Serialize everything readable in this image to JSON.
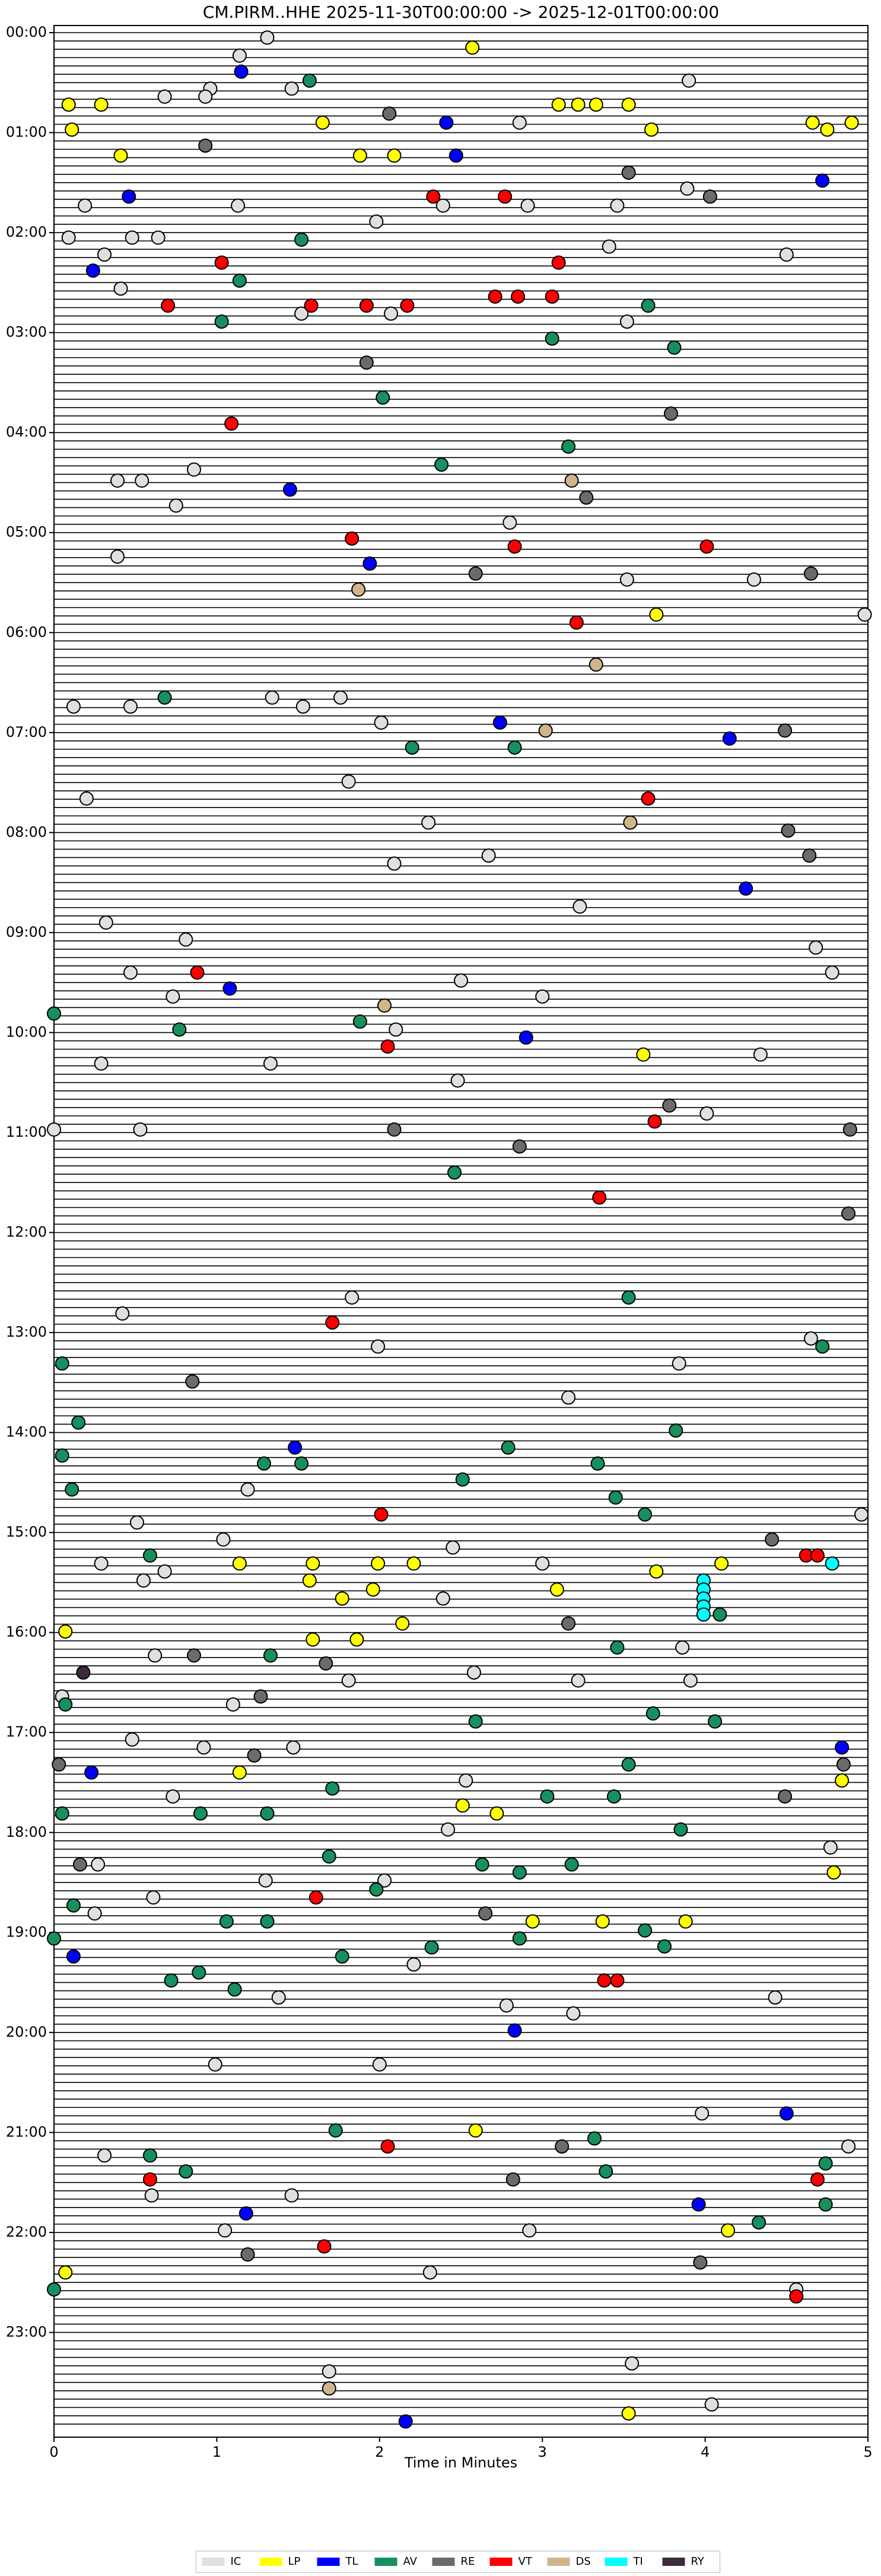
{
  "chart_data": {
    "type": "scatter",
    "title": "CM.PIRM..HHE  2025-11-30T00:00:00 -> 2025-12-01T00:00:00",
    "x_label": "Time in Minutes",
    "xlim": [
      0,
      5
    ],
    "xticks": [
      0,
      1,
      2,
      3,
      4,
      5
    ],
    "ylim": [
      0,
      24
    ],
    "yticks": [
      {
        "value": 0,
        "label": "00:00"
      },
      {
        "value": 1,
        "label": "01:00"
      },
      {
        "value": 2,
        "label": "02:00"
      },
      {
        "value": 3,
        "label": "03:00"
      },
      {
        "value": 4,
        "label": "04:00"
      },
      {
        "value": 5,
        "label": "05:00"
      },
      {
        "value": 6,
        "label": "06:00"
      },
      {
        "value": 7,
        "label": "07:00"
      },
      {
        "value": 8,
        "label": "08:00"
      },
      {
        "value": 9,
        "label": "09:00"
      },
      {
        "value": 10,
        "label": "10:00"
      },
      {
        "value": 11,
        "label": "11:00"
      },
      {
        "value": 12,
        "label": "12:00"
      },
      {
        "value": 13,
        "label": "13:00"
      },
      {
        "value": 14,
        "label": "14:00"
      },
      {
        "value": 15,
        "label": "15:00"
      },
      {
        "value": 16,
        "label": "16:00"
      },
      {
        "value": 17,
        "label": "17:00"
      },
      {
        "value": 18,
        "label": "18:00"
      },
      {
        "value": 19,
        "label": "19:00"
      },
      {
        "value": 20,
        "label": "20:00"
      },
      {
        "value": 21,
        "label": "21:00"
      },
      {
        "value": 22,
        "label": "22:00"
      },
      {
        "value": 23,
        "label": "23:00"
      }
    ],
    "legend_position": "bottom",
    "series": [
      {
        "name": "IC",
        "color": "#e0e0e0",
        "x": [
          1.31,
          1.14,
          0.96,
          1.46,
          0.93,
          3.9,
          2.86,
          0.68,
          0.19,
          1.13,
          2.39,
          2.91,
          3.46,
          3.89,
          0.09,
          0.48,
          0.64,
          1.98,
          3.41,
          0.31,
          4.5,
          0.41,
          1.52,
          2.07,
          3.52,
          0.86,
          0.39,
          0.54,
          0.75,
          2.8,
          0.39,
          3.52,
          4.3,
          4.98,
          0.12,
          0.47,
          1.34,
          1.53,
          1.76,
          2.01,
          1.81,
          0.2,
          2.3,
          2.09,
          2.67,
          3.23,
          0.32,
          0.81,
          4.68,
          0.47,
          0.73,
          2.5,
          3.0,
          4.78,
          2.1,
          0.29,
          1.33,
          2.48,
          4.34,
          0,
          0.53,
          4.01,
          1.83,
          0.42,
          1.99,
          4.65,
          3.84,
          3.16,
          1.19,
          0.51,
          4.96,
          1.04,
          2.45,
          0.29,
          3.0,
          0.55,
          0.68,
          2.39,
          3.86,
          0.62,
          1.81,
          2.58,
          3.22,
          3.91,
          0.05,
          1.1,
          0.48,
          0.92,
          1.47,
          0.73,
          2.53,
          2.42,
          4.77,
          0.27,
          1.3,
          2.03,
          0.61,
          0.25,
          2.21,
          1.38,
          2.78,
          3.19,
          4.43,
          0.99,
          2.0,
          3.98,
          4.88,
          0.31,
          1.46,
          0.6,
          1.05,
          2.92,
          2.31,
          4.56,
          3.55,
          1.69,
          4.04
        ],
        "y": [
          0.05,
          0.23,
          0.56,
          0.56,
          0.64,
          0.48,
          0.9,
          0.64,
          1.73,
          1.73,
          1.73,
          1.73,
          1.73,
          1.56,
          2.05,
          2.05,
          2.05,
          1.89,
          2.14,
          2.22,
          2.22,
          2.56,
          2.81,
          2.81,
          2.89,
          4.37,
          4.48,
          4.48,
          4.73,
          4.9,
          5.24,
          5.47,
          5.47,
          5.82,
          6.74,
          6.74,
          6.65,
          6.74,
          6.65,
          6.9,
          7.49,
          7.66,
          7.9,
          8.31,
          8.23,
          8.74,
          8.9,
          9.07,
          9.15,
          9.4,
          9.64,
          9.48,
          9.64,
          9.4,
          9.97,
          10.31,
          10.31,
          10.48,
          10.22,
          10.97,
          10.97,
          10.81,
          12.65,
          12.81,
          13.14,
          13.06,
          13.31,
          13.65,
          14.57,
          14.9,
          14.82,
          15.07,
          15.15,
          15.31,
          15.31,
          15.48,
          15.39,
          15.66,
          16.15,
          16.23,
          16.48,
          16.4,
          16.48,
          16.48,
          16.64,
          16.72,
          17.07,
          17.15,
          17.15,
          17.64,
          17.48,
          17.97,
          18.15,
          18.32,
          18.48,
          18.48,
          18.65,
          18.81,
          19.32,
          19.65,
          19.73,
          19.81,
          19.65,
          20.32,
          20.32,
          20.81,
          21.14,
          21.23,
          21.63,
          21.63,
          21.98,
          21.98,
          22.4,
          22.57,
          23.31,
          23.39,
          23.72
        ]
      },
      {
        "name": "LP",
        "color": "#ffff00",
        "x": [
          2.57,
          0.09,
          0.29,
          1.65,
          0.11,
          3.67,
          0.41,
          1.88,
          2.09,
          3.7,
          3.62,
          1.14,
          1.59,
          1.99,
          2.21,
          4.1,
          3.7,
          1.57,
          1.96,
          1.77,
          3.09,
          0.07,
          2.14,
          1.59,
          1.86,
          1.14,
          4.84,
          2.51,
          2.72,
          4.79,
          2.94,
          3.37,
          3.88,
          2.59,
          4.14,
          0.07,
          3.53,
          3.1,
          3.22,
          3.33,
          3.53,
          4.66,
          4.75,
          4.9
        ],
        "y": [
          0.15,
          0.72,
          0.72,
          0.9,
          0.97,
          0.97,
          1.23,
          1.23,
          1.23,
          5.82,
          10.22,
          15.31,
          15.31,
          15.31,
          15.31,
          15.31,
          15.39,
          15.48,
          15.57,
          15.66,
          15.57,
          15.99,
          15.91,
          16.07,
          16.07,
          17.4,
          17.48,
          17.73,
          17.81,
          18.4,
          18.89,
          18.89,
          18.89,
          20.98,
          21.98,
          22.4,
          23.81,
          0.72,
          0.72,
          0.72,
          0.72,
          0.9,
          0.97,
          0.9
        ]
      },
      {
        "name": "TL",
        "color": "#0000ff",
        "x": [
          1.15,
          2.41,
          2.47,
          4.72,
          0.46,
          0.24,
          1.45,
          1.94,
          2.74,
          4.15,
          4.25,
          1.08,
          2.9,
          1.48,
          4.84,
          0.23,
          0.12,
          2.83,
          4.5,
          1.18,
          3.96,
          2.16
        ],
        "y": [
          0.39,
          0.9,
          1.23,
          1.48,
          1.64,
          2.38,
          4.57,
          5.31,
          6.9,
          7.06,
          8.56,
          9.56,
          10.05,
          14.15,
          17.15,
          17.4,
          19.24,
          19.98,
          20.81,
          21.81,
          21.72,
          23.89
        ]
      },
      {
        "name": "AV",
        "color": "#178f5f",
        "x": [
          1.57,
          1.52,
          1.14,
          3.65,
          1.03,
          3.06,
          3.81,
          2.02,
          3.16,
          2.38,
          0.68,
          2.2,
          2.83,
          1.88,
          0.77,
          0,
          2.46,
          3.53,
          4.72,
          0.05,
          0.15,
          3.82,
          2.79,
          0.05,
          1.29,
          1.52,
          3.34,
          2.51,
          0.11,
          3.45,
          3.63,
          0.59,
          4.09,
          3.46,
          1.33,
          0.07,
          2.59,
          3.68,
          4.06,
          3.53,
          1.71,
          3.03,
          3.44,
          0.05,
          0.9,
          1.31,
          3.85,
          1.69,
          2.63,
          3.18,
          2.86,
          1.98,
          0.12,
          1.06,
          1.31,
          3.63,
          0,
          2.86,
          3.75,
          1.77,
          2.32,
          0.89,
          0.72,
          1.11,
          1.73,
          3.32,
          0.59,
          4.74,
          0.81,
          3.39,
          4.74,
          4.33,
          0
        ],
        "y": [
          0.48,
          2.07,
          2.48,
          2.73,
          2.89,
          3.06,
          3.15,
          3.65,
          4.14,
          4.32,
          6.65,
          7.15,
          7.15,
          9.89,
          9.97,
          9.81,
          11.4,
          12.65,
          13.14,
          13.31,
          13.9,
          13.98,
          14.15,
          14.23,
          14.31,
          14.31,
          14.31,
          14.47,
          14.57,
          14.65,
          14.82,
          15.23,
          15.82,
          16.15,
          16.23,
          16.72,
          16.89,
          16.81,
          16.89,
          17.32,
          17.56,
          17.64,
          17.64,
          17.81,
          17.81,
          17.81,
          17.97,
          18.24,
          18.32,
          18.32,
          18.4,
          18.57,
          18.73,
          18.89,
          18.89,
          18.98,
          19.06,
          19.06,
          19.14,
          19.24,
          19.15,
          19.4,
          19.48,
          19.57,
          20.98,
          21.06,
          21.23,
          21.31,
          21.39,
          21.39,
          21.72,
          21.9,
          22.57
        ]
      },
      {
        "name": "RE",
        "color": "#6b6b6b",
        "x": [
          2.06,
          0.93,
          3.53,
          4.03,
          1.92,
          3.79,
          3.27,
          2.59,
          4.65,
          4.49,
          4.51,
          4.64,
          3.78,
          2.09,
          4.89,
          2.86,
          4.88,
          0.85,
          4.41,
          3.16,
          0.86,
          1.67,
          1.27,
          1.23,
          0.03,
          4.85,
          4.49,
          0.16,
          2.65,
          3.12,
          2.82,
          1.19,
          3.97
        ],
        "y": [
          0.81,
          1.13,
          1.4,
          1.64,
          3.3,
          3.81,
          4.65,
          5.41,
          5.41,
          6.98,
          7.98,
          8.23,
          10.73,
          10.97,
          10.97,
          11.14,
          11.81,
          13.49,
          15.07,
          15.91,
          16.23,
          16.31,
          16.64,
          17.23,
          17.32,
          17.32,
          17.64,
          18.32,
          18.81,
          21.14,
          21.47,
          22.22,
          22.3
        ]
      },
      {
        "name": "VT",
        "color": "#ff0000",
        "x": [
          2.33,
          2.77,
          1.03,
          3.1,
          0.7,
          1.58,
          1.92,
          2.17,
          2.71,
          2.85,
          3.06,
          1.09,
          1.83,
          2.83,
          4.01,
          3.21,
          3.65,
          0.88,
          2.05,
          3.69,
          3.35,
          1.71,
          2.01,
          4.62,
          4.69,
          1.61,
          3.38,
          3.46,
          2.05,
          4.69,
          0.59,
          1.66,
          4.56
        ],
        "y": [
          1.64,
          1.64,
          2.3,
          2.3,
          2.73,
          2.73,
          2.73,
          2.73,
          2.64,
          2.64,
          2.64,
          3.91,
          5.06,
          5.14,
          5.14,
          5.9,
          7.66,
          9.4,
          10.14,
          10.89,
          11.65,
          12.9,
          14.82,
          15.23,
          15.23,
          18.65,
          19.48,
          19.48,
          21.14,
          21.47,
          21.47,
          22.14,
          22.64
        ]
      },
      {
        "name": "DS",
        "color": "#d2b48c",
        "x": [
          3.18,
          1.87,
          3.33,
          3.02,
          3.54,
          2.03,
          1.69
        ],
        "y": [
          4.48,
          5.57,
          6.32,
          6.98,
          7.9,
          9.73,
          23.56
        ]
      },
      {
        "name": "TI",
        "color": "#00ffff",
        "x": [
          4.78,
          3.99,
          3.99,
          3.99,
          3.99,
          3.99
        ],
        "y": [
          15.31,
          15.48,
          15.57,
          15.66,
          15.74,
          15.82
        ]
      },
      {
        "name": "RY",
        "color": "#3d2b3d",
        "x": [
          0.18
        ],
        "y": [
          16.4
        ]
      }
    ]
  }
}
